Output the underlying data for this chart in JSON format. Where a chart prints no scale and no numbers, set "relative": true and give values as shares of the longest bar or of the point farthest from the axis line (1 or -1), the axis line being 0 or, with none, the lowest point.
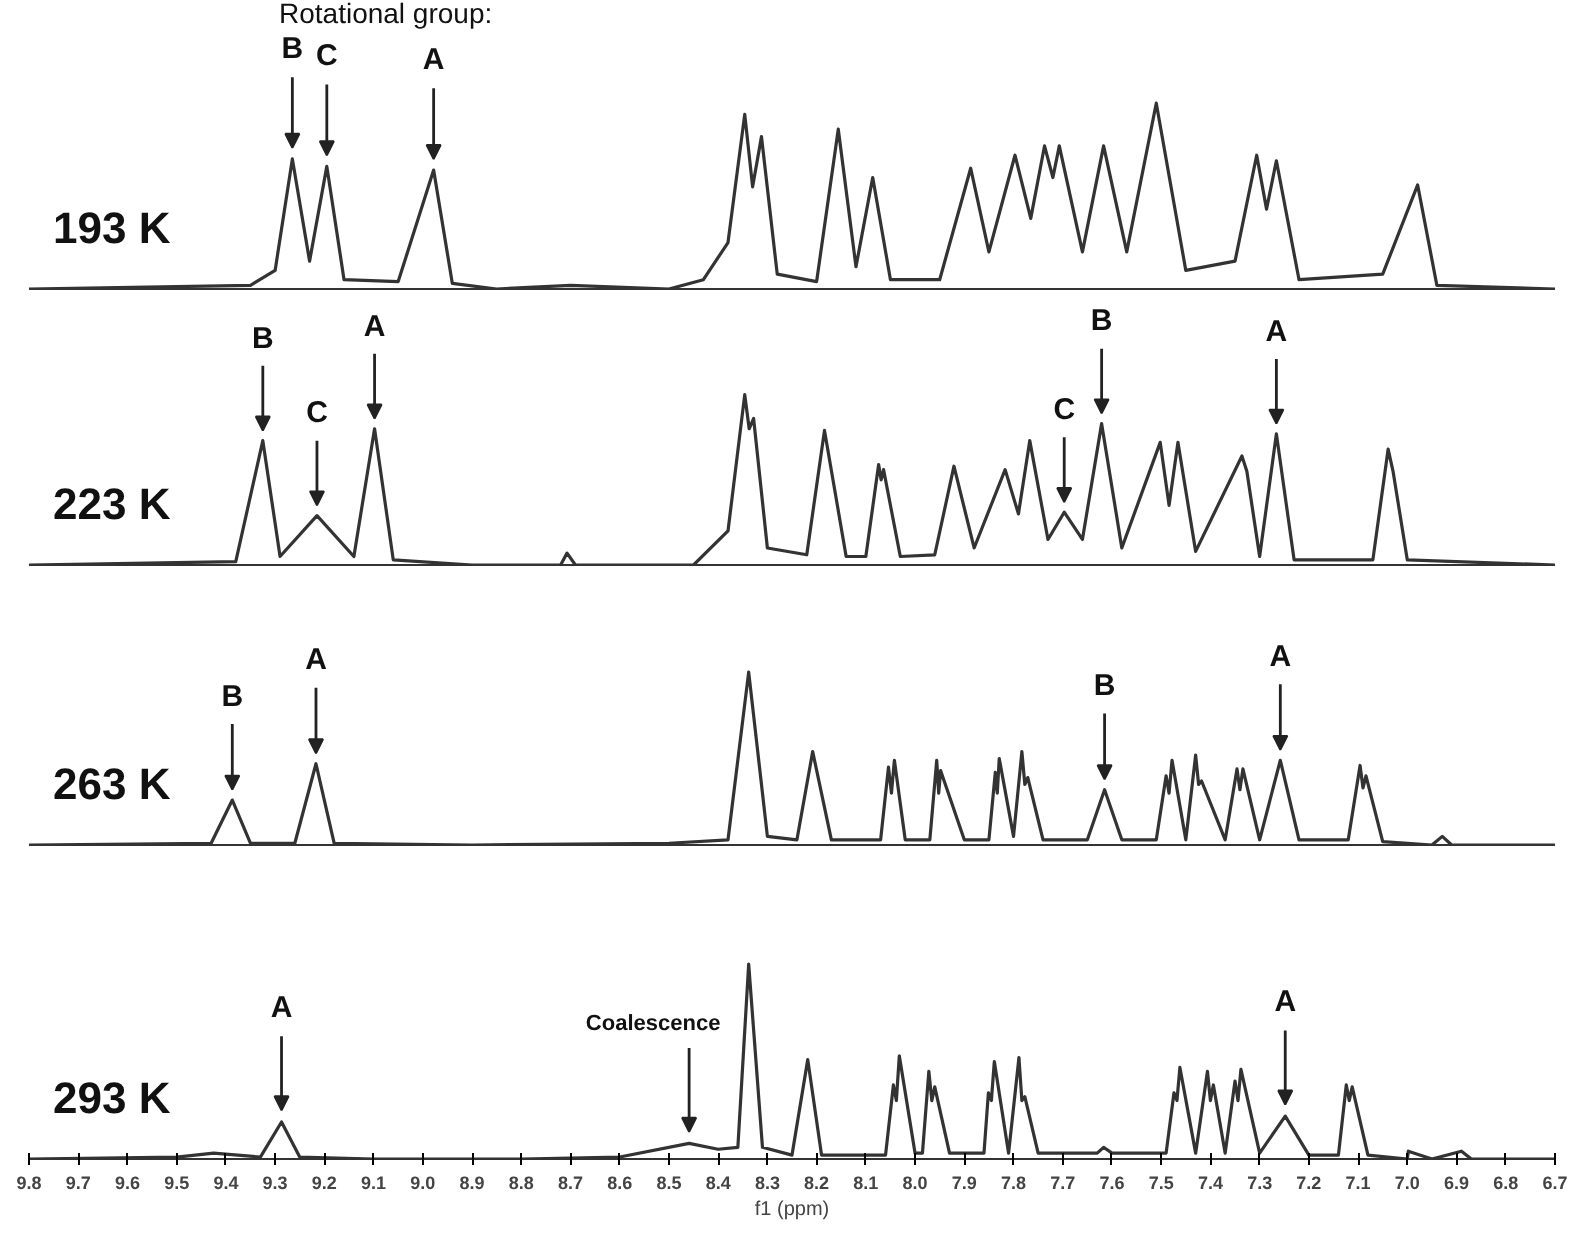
{
  "chart_data": [
    {
      "type": "line",
      "title": "193 K",
      "relative": true,
      "grid": false,
      "tick_labels": false,
      "xlim": [
        9.8,
        6.7
      ],
      "xticks": [
        9.8,
        9.7,
        9.6,
        9.5,
        9.4,
        9.3,
        9.2,
        9.1,
        9.0,
        8.9,
        8.8,
        8.7,
        8.6,
        8.5,
        8.4,
        8.3,
        8.2,
        8.1,
        8.0,
        7.9,
        7.8,
        7.7,
        7.6,
        7.5,
        7.4,
        7.3,
        7.2,
        7.1,
        7.0,
        6.9,
        6.8,
        6.7
      ],
      "x": [
        9.8,
        9.35,
        9.3,
        9.265,
        9.23,
        9.195,
        9.16,
        9.05,
        8.978,
        8.94,
        8.85,
        8.7,
        8.5,
        8.43,
        8.38,
        8.346,
        8.33,
        8.312,
        8.28,
        8.2,
        8.156,
        8.12,
        8.086,
        8.05,
        7.95,
        7.887,
        7.85,
        7.797,
        7.765,
        7.737,
        7.72,
        7.707,
        7.66,
        7.617,
        7.57,
        7.51,
        7.45,
        7.35,
        7.306,
        7.286,
        7.266,
        7.22,
        7.05,
        6.979,
        6.94,
        6.7
      ],
      "series": [
        {
          "color": "#333333",
          "values": [
            0,
            0.02,
            0.1,
            0.7,
            0.15,
            0.66,
            0.05,
            0.04,
            0.64,
            0.03,
            0,
            0.02,
            0,
            0.05,
            0.25,
            0.94,
            0.55,
            0.82,
            0.08,
            0.04,
            0.86,
            0.12,
            0.6,
            0.05,
            0.05,
            0.65,
            0.2,
            0.72,
            0.38,
            0.77,
            0.6,
            0.77,
            0.2,
            0.77,
            0.2,
            1.0,
            0.1,
            0.15,
            0.72,
            0.43,
            0.69,
            0.05,
            0.08,
            0.56,
            0.02,
            0
          ]
        }
      ],
      "annotations": [
        "Rotational group:",
        {
          "text": "B",
          "x": 9.265,
          "y": 0.7
        },
        {
          "text": "C",
          "x": 9.195,
          "y": 0.66
        },
        {
          "text": "A",
          "x": 8.978,
          "y": 0.64
        }
      ]
    },
    {
      "type": "line",
      "title": "223 K",
      "relative": true,
      "grid": false,
      "tick_labels": false,
      "xlim": [
        9.8,
        6.7
      ],
      "xticks": [
        9.8,
        9.7,
        9.6,
        9.5,
        9.4,
        9.3,
        9.2,
        9.1,
        9.0,
        8.9,
        8.8,
        8.7,
        8.6,
        8.5,
        8.4,
        8.3,
        8.2,
        8.1,
        8.0,
        7.9,
        7.8,
        7.7,
        7.6,
        7.5,
        7.4,
        7.3,
        7.2,
        7.1,
        7.0,
        6.9,
        6.8,
        6.7
      ],
      "x": [
        9.8,
        9.38,
        9.325,
        9.29,
        9.215,
        9.14,
        9.098,
        9.06,
        8.9,
        8.72,
        8.707,
        8.69,
        8.45,
        8.38,
        8.346,
        8.337,
        8.328,
        8.3,
        8.22,
        8.184,
        8.14,
        8.1,
        8.074,
        8.069,
        8.064,
        8.03,
        7.96,
        7.921,
        7.88,
        7.817,
        7.79,
        7.767,
        7.73,
        7.697,
        7.66,
        7.621,
        7.58,
        7.502,
        7.484,
        7.466,
        7.43,
        7.336,
        7.326,
        7.3,
        7.266,
        7.23,
        7.07,
        7.039,
        7.029,
        7.0,
        6.7
      ],
      "series": [
        {
          "color": "#333333",
          "values": [
            0,
            0.02,
            0.73,
            0.05,
            0.29,
            0.05,
            0.8,
            0.03,
            0.0,
            0.0,
            0.07,
            0.0,
            0.0,
            0.2,
            1.0,
            0.8,
            0.86,
            0.1,
            0.06,
            0.79,
            0.05,
            0.05,
            0.59,
            0.5,
            0.56,
            0.05,
            0.06,
            0.58,
            0.1,
            0.56,
            0.3,
            0.73,
            0.15,
            0.31,
            0.15,
            0.83,
            0.1,
            0.72,
            0.35,
            0.72,
            0.08,
            0.64,
            0.55,
            0.05,
            0.77,
            0.03,
            0.03,
            0.68,
            0.55,
            0.03,
            0
          ]
        }
      ],
      "annotations": [
        {
          "text": "B",
          "x": 9.325,
          "y": 0.73
        },
        {
          "text": "C",
          "x": 9.215,
          "y": 0.29
        },
        {
          "text": "A",
          "x": 9.098,
          "y": 0.8
        },
        {
          "text": "C",
          "x": 7.697,
          "y": 0.31
        },
        {
          "text": "B",
          "x": 7.621,
          "y": 0.83
        },
        {
          "text": "A",
          "x": 7.266,
          "y": 0.77
        }
      ]
    },
    {
      "type": "line",
      "title": "263 K",
      "relative": true,
      "grid": false,
      "tick_labels": false,
      "xlim": [
        9.8,
        6.7
      ],
      "xticks": [
        9.8,
        9.7,
        9.6,
        9.5,
        9.4,
        9.3,
        9.2,
        9.1,
        9.0,
        8.9,
        8.8,
        8.7,
        8.6,
        8.5,
        8.4,
        8.3,
        8.2,
        8.1,
        8.0,
        7.9,
        7.8,
        7.7,
        7.6,
        7.5,
        7.4,
        7.3,
        7.2,
        7.1,
        7.0,
        6.9,
        6.8,
        6.7
      ],
      "x": [
        9.8,
        9.43,
        9.387,
        9.35,
        9.26,
        9.217,
        9.18,
        8.9,
        8.5,
        8.38,
        8.338,
        8.3,
        8.24,
        8.208,
        8.17,
        8.07,
        8.054,
        8.048,
        8.042,
        8.02,
        7.97,
        7.956,
        7.952,
        7.948,
        7.9,
        7.85,
        7.837,
        7.833,
        7.829,
        7.8,
        7.783,
        7.777,
        7.771,
        7.74,
        7.65,
        7.615,
        7.58,
        7.51,
        7.49,
        7.484,
        7.478,
        7.45,
        7.43,
        7.424,
        7.418,
        7.37,
        7.346,
        7.34,
        7.334,
        7.3,
        7.258,
        7.22,
        7.12,
        7.096,
        7.09,
        7.084,
        7.05,
        6.95,
        6.929,
        6.91,
        6.7
      ],
      "series": [
        {
          "color": "#333333",
          "values": [
            0,
            0.01,
            0.26,
            0.01,
            0.01,
            0.47,
            0.01,
            0.0,
            0.01,
            0.03,
            1.0,
            0.05,
            0.03,
            0.54,
            0.03,
            0.03,
            0.45,
            0.3,
            0.49,
            0.03,
            0.03,
            0.49,
            0.3,
            0.43,
            0.03,
            0.03,
            0.42,
            0.3,
            0.5,
            0.05,
            0.54,
            0.35,
            0.39,
            0.03,
            0.03,
            0.32,
            0.03,
            0.03,
            0.4,
            0.3,
            0.49,
            0.03,
            0.52,
            0.35,
            0.37,
            0.03,
            0.44,
            0.32,
            0.44,
            0.03,
            0.49,
            0.03,
            0.03,
            0.46,
            0.33,
            0.4,
            0.02,
            0.0,
            0.05,
            0.0,
            0
          ]
        }
      ],
      "annotations": [
        {
          "text": "B",
          "x": 9.387,
          "y": 0.26
        },
        {
          "text": "A",
          "x": 9.217,
          "y": 0.47
        },
        {
          "text": "B",
          "x": 7.615,
          "y": 0.32
        },
        {
          "text": "A",
          "x": 7.258,
          "y": 0.49
        }
      ]
    },
    {
      "type": "line",
      "title": "293 K",
      "relative": true,
      "grid": false,
      "tick_labels": "x",
      "xlim": [
        9.8,
        6.7
      ],
      "xticks": [
        9.8,
        9.7,
        9.6,
        9.5,
        9.4,
        9.3,
        9.2,
        9.1,
        {
          "value": 9.0,
          "label": "9.0"
        },
        8.9,
        8.8,
        8.7,
        8.6,
        8.5,
        8.4,
        8.3,
        8.2,
        8.1,
        {
          "value": 8.0,
          "label": "8.0"
        },
        7.9,
        7.8,
        7.7,
        7.6,
        7.5,
        7.4,
        7.3,
        7.2,
        7.1,
        {
          "value": 7.0,
          "label": "7.0"
        },
        6.9,
        6.8,
        6.7
      ],
      "xlabel": "f1 (ppm)",
      "x": [
        9.8,
        9.5,
        9.425,
        9.33,
        9.287,
        9.25,
        9.1,
        8.8,
        8.6,
        8.459,
        8.4,
        8.36,
        8.338,
        8.31,
        8.25,
        8.218,
        8.19,
        8.06,
        8.044,
        8.038,
        8.032,
        8.0,
        7.985,
        7.972,
        7.966,
        7.96,
        7.93,
        7.86,
        7.851,
        7.845,
        7.839,
        7.81,
        7.789,
        7.783,
        7.777,
        7.75,
        7.63,
        7.617,
        7.6,
        7.49,
        7.474,
        7.468,
        7.462,
        7.43,
        7.406,
        7.4,
        7.394,
        7.37,
        7.35,
        7.344,
        7.338,
        7.3,
        7.248,
        7.2,
        7.14,
        7.124,
        7.118,
        7.112,
        7.08,
        7.0,
        6.998,
        6.95,
        6.89,
        6.87,
        6.7
      ],
      "series": [
        {
          "color": "#333333",
          "values": [
            0,
            0.01,
            0.03,
            0.01,
            0.19,
            0.01,
            0.0,
            0.0,
            0.01,
            0.08,
            0.05,
            0.06,
            1.0,
            0.06,
            0.02,
            0.51,
            0.02,
            0.02,
            0.38,
            0.3,
            0.53,
            0.03,
            0.03,
            0.45,
            0.3,
            0.37,
            0.03,
            0.03,
            0.34,
            0.3,
            0.5,
            0.03,
            0.52,
            0.3,
            0.32,
            0.03,
            0.03,
            0.06,
            0.03,
            0.03,
            0.34,
            0.3,
            0.47,
            0.03,
            0.45,
            0.3,
            0.38,
            0.03,
            0.4,
            0.3,
            0.46,
            0.03,
            0.22,
            0.02,
            0.02,
            0.38,
            0.3,
            0.37,
            0.02,
            0.0,
            0.04,
            0.0,
            0.04,
            0.0,
            0
          ]
        }
      ],
      "annotations": [
        {
          "text": "A",
          "x": 9.287,
          "y": 0.19
        },
        {
          "text": "Coalescence",
          "x": 8.459,
          "y": 0.08
        },
        {
          "text": "A",
          "x": 7.248,
          "y": 0.22
        }
      ]
    }
  ]
}
